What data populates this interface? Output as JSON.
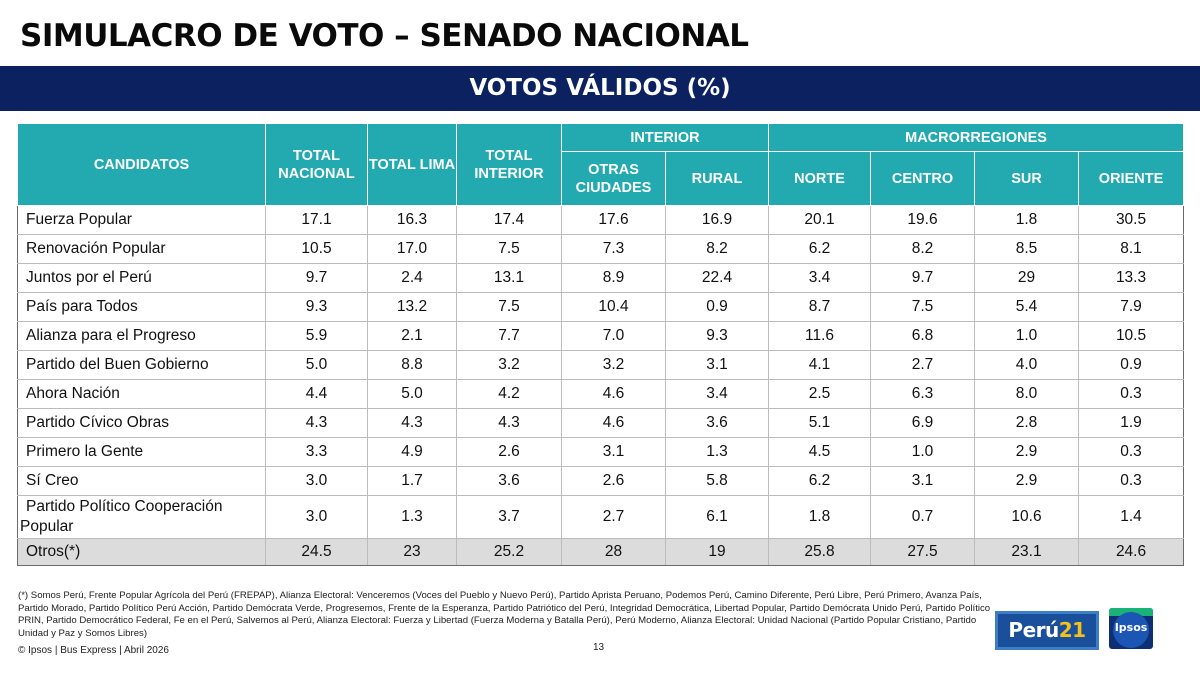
{
  "title": "SIMULACRO DE VOTO – SENADO NACIONAL",
  "subtitle": "VOTOS VÁLIDOS (%)",
  "table": {
    "header_candidatos": "CANDIDATOS",
    "header_total_nacional": "TOTAL NACIONAL",
    "header_total_lima": "TOTAL LIMA",
    "header_total_interior": "TOTAL INTERIOR",
    "group_interior": "INTERIOR",
    "group_macrorregiones": "MACRORREGIONES",
    "header_otras_ciudades": "OTRAS CIUDADES",
    "header_rural": "RURAL",
    "header_norte": "NORTE",
    "header_centro": "CENTRO",
    "header_sur": "SUR",
    "header_oriente": "ORIENTE",
    "rows": [
      {
        "name": "Fuerza Popular",
        "values": [
          "17.1",
          "16.3",
          "17.4",
          "17.6",
          "16.9",
          "20.1",
          "19.6",
          "1.8",
          "30.5"
        ]
      },
      {
        "name": "Renovación Popular",
        "values": [
          "10.5",
          "17.0",
          "7.5",
          "7.3",
          "8.2",
          "6.2",
          "8.2",
          "8.5",
          "8.1"
        ]
      },
      {
        "name": "Juntos por el Perú",
        "values": [
          "9.7",
          "2.4",
          "13.1",
          "8.9",
          "22.4",
          "3.4",
          "9.7",
          "29",
          "13.3"
        ]
      },
      {
        "name": "País para Todos",
        "values": [
          "9.3",
          "13.2",
          "7.5",
          "10.4",
          "0.9",
          "8.7",
          "7.5",
          "5.4",
          "7.9"
        ]
      },
      {
        "name": "Alianza para el Progreso",
        "values": [
          "5.9",
          "2.1",
          "7.7",
          "7.0",
          "9.3",
          "11.6",
          "6.8",
          "1.0",
          "10.5"
        ]
      },
      {
        "name": "Partido del Buen Gobierno",
        "values": [
          "5.0",
          "8.8",
          "3.2",
          "3.2",
          "3.1",
          "4.1",
          "2.7",
          "4.0",
          "0.9"
        ]
      },
      {
        "name": "Ahora Nación",
        "values": [
          "4.4",
          "5.0",
          "4.2",
          "4.6",
          "3.4",
          "2.5",
          "6.3",
          "8.0",
          "0.3"
        ]
      },
      {
        "name": "Partido Cívico Obras",
        "values": [
          "4.3",
          "4.3",
          "4.3",
          "4.6",
          "3.6",
          "5.1",
          "6.9",
          "2.8",
          "1.9"
        ]
      },
      {
        "name": "Primero la Gente",
        "values": [
          "3.3",
          "4.9",
          "2.6",
          "3.1",
          "1.3",
          "4.5",
          "1.0",
          "2.9",
          "0.3"
        ]
      },
      {
        "name": "Sí Creo",
        "values": [
          "3.0",
          "1.7",
          "3.6",
          "2.6",
          "5.8",
          "6.2",
          "3.1",
          "2.9",
          "0.3"
        ]
      },
      {
        "name": "Partido Político Cooperación Popular",
        "values": [
          "3.0",
          "1.3",
          "3.7",
          "2.7",
          "6.1",
          "1.8",
          "0.7",
          "10.6",
          "1.4"
        ]
      },
      {
        "name": "Otros(*)",
        "values": [
          "24.5",
          "23",
          "25.2",
          "28",
          "19",
          "25.8",
          "27.5",
          "23.1",
          "24.6"
        ]
      }
    ]
  },
  "footnote": "(*) Somos Perú, Frente Popular Agrícola del Perú (FREPAP), Alianza Electoral: Venceremos (Voces del Pueblo y Nuevo Perú), Partido Aprista Peruano, Podemos Perú, Camino Diferente, Perú Libre, Perú Primero, Avanza País, Partido Morado, Partido Político Perú Acción, Partido Demócrata Verde, Progresemos, Frente de la Esperanza, Partido Patriótico del Perú, Integridad Democrática, Libertad Popular, Partido Demócrata Unido Perú, Partido Político PRIN, Partido Democrático Federal, Fe en el Perú, Salvemos al Perú, Alianza Electoral: Fuerza y Libertad (Fuerza Moderna y Batalla Perú), Perú Moderno, Alianza Electoral: Unidad Nacional (Partido Popular Cristiano, Partido Unidad y Paz y Somos Libres)",
  "source": "© Ipsos | Bus Express | Abril 2026",
  "page_number": "13",
  "logos": {
    "peru21_word": "Perú",
    "peru21_num": "21",
    "ipsos": "Ipsos"
  },
  "colors": {
    "banner": "#0b2160",
    "table_header": "#23aab0",
    "others_row": "#dcdcdc"
  }
}
